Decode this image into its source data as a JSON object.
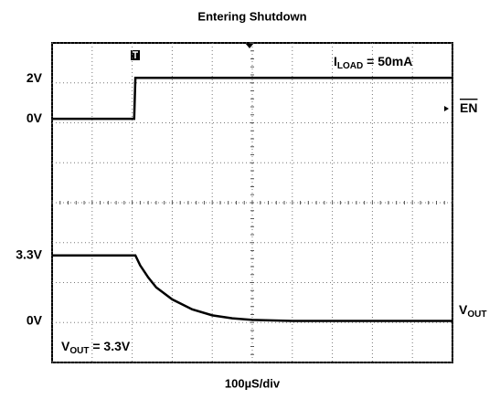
{
  "chart_data": {
    "type": "scope",
    "title": "Entering Shutdown",
    "x_label": "100µS/div",
    "xlim": [
      0,
      1000
    ],
    "xticks": [
      0,
      100,
      200,
      300,
      400,
      500,
      600,
      700,
      800,
      900,
      1000
    ],
    "ylim": [
      -4,
      4
    ],
    "yticks": [
      -4,
      -3,
      -2,
      -1,
      0,
      1,
      2,
      3,
      4
    ],
    "grid": true,
    "color": "#000000",
    "annotations": [
      {
        "base": "I",
        "sub": "LOAD",
        "rest": " = 50mA"
      },
      {
        "base": "V",
        "sub": "OUT",
        "rest": " = 3.3V"
      }
    ],
    "series": [
      {
        "name": {
          "base": "EN",
          "overline": true
        },
        "color": "#000000",
        "volts_per_div": 2,
        "offset_div": 2.1,
        "levels": [
          {
            "value": 0,
            "label": "0V"
          },
          {
            "value": 2,
            "label": "2V"
          }
        ],
        "x": [
          0,
          205,
          208,
          1000
        ],
        "values": [
          0,
          0,
          2.05,
          2.05
        ]
      },
      {
        "name": {
          "base": "V",
          "sub": "OUT"
        },
        "color": "#000000",
        "volts_per_div": 2,
        "offset_div": -2.97,
        "levels": [
          {
            "value": 0,
            "label": "0V"
          },
          {
            "value": 3.3,
            "label": "3.3V"
          }
        ],
        "x": [
          0,
          208,
          220,
          240,
          260,
          300,
          350,
          400,
          450,
          500,
          600,
          1000
        ],
        "values": [
          3.3,
          3.3,
          2.8,
          2.2,
          1.7,
          1.1,
          0.6,
          0.3,
          0.15,
          0.07,
          0.02,
          0.02
        ]
      }
    ]
  }
}
